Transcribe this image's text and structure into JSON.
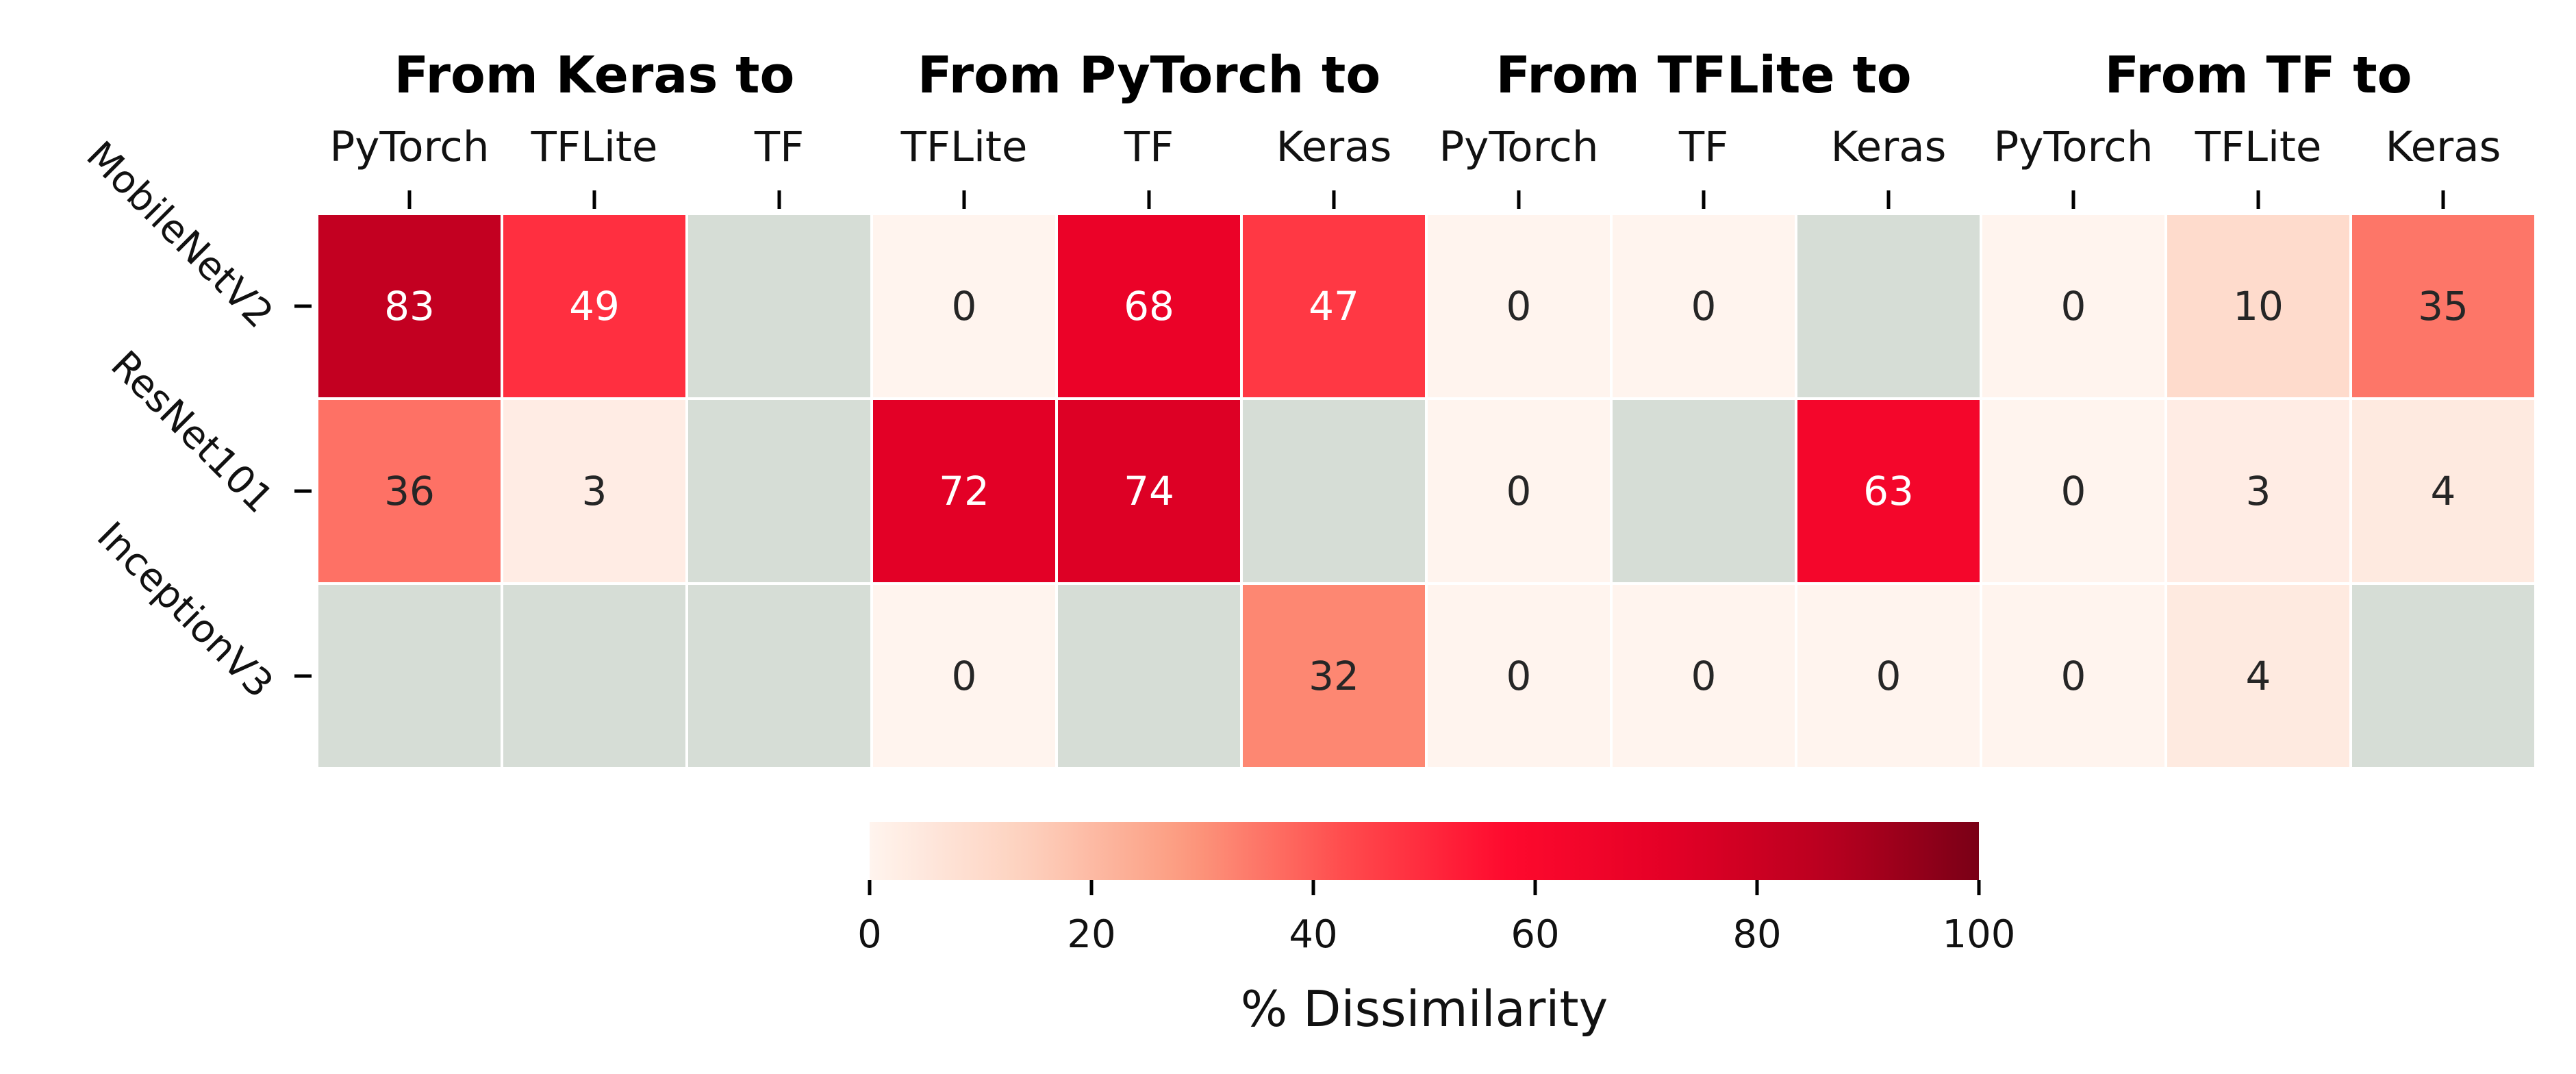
{
  "chart_data": {
    "type": "heatmap",
    "groups": [
      {
        "title": "From Keras to",
        "columns": [
          "PyTorch",
          "TFLite",
          "TF"
        ]
      },
      {
        "title": "From PyTorch to",
        "columns": [
          "TFLite",
          "TF",
          "Keras"
        ]
      },
      {
        "title": "From TFLite to",
        "columns": [
          "PyTorch",
          "TF",
          "Keras"
        ]
      },
      {
        "title": "From TF to",
        "columns": [
          "PyTorch",
          "TFLite",
          "Keras"
        ]
      }
    ],
    "rows": [
      "MobileNetV2",
      "ResNet101",
      "InceptionV3"
    ],
    "values": [
      [
        83,
        49,
        null,
        0,
        68,
        47,
        0,
        0,
        null,
        0,
        10,
        35
      ],
      [
        36,
        3,
        null,
        72,
        74,
        null,
        0,
        null,
        63,
        0,
        3,
        4
      ],
      [
        null,
        null,
        null,
        0,
        null,
        32,
        0,
        0,
        0,
        0,
        4,
        null
      ]
    ],
    "value_range": [
      0,
      100
    ],
    "missing_color": "#d6ddd6",
    "colormap": [
      "#fff4ee",
      "#fdd0bd",
      "#fc9a7e",
      "#ff4b4d",
      "#ff0a2e",
      "#e50026",
      "#bb0020",
      "#7a0016"
    ],
    "colorbar": {
      "label": "% Dissimilarity",
      "ticks": [
        0,
        20,
        40,
        60,
        80,
        100
      ]
    }
  }
}
